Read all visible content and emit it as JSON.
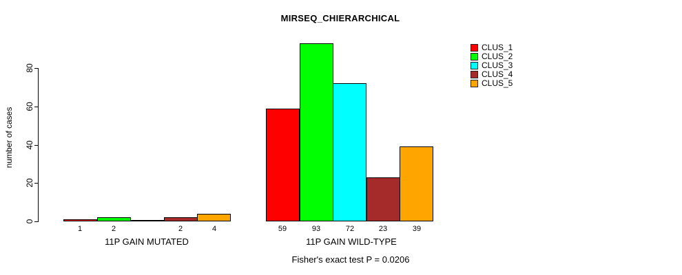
{
  "chart_data": {
    "type": "bar",
    "title": "MIRSEQ_CHIERARCHICAL",
    "ylabel": "number of cases",
    "xlabel": "",
    "groups": [
      "11P GAIN MUTATED",
      "11P GAIN WILD-TYPE"
    ],
    "series": [
      {
        "name": "CLUS_1",
        "color": "#ff0000",
        "values": [
          1,
          59
        ]
      },
      {
        "name": "CLUS_2",
        "color": "#00ff00",
        "values": [
          2,
          93
        ]
      },
      {
        "name": "CLUS_3",
        "color": "#00ffff",
        "values": [
          0,
          72
        ]
      },
      {
        "name": "CLUS_4",
        "color": "#a52a2a",
        "values": [
          2,
          23
        ]
      },
      {
        "name": "CLUS_5",
        "color": "#ffa500",
        "values": [
          4,
          39
        ]
      }
    ],
    "bar_labels": [
      [
        "1",
        "2",
        null,
        "2",
        "4"
      ],
      [
        "59",
        "93",
        "72",
        "23",
        "39"
      ]
    ],
    "yticks": [
      0,
      20,
      40,
      60,
      80
    ],
    "ylim": [
      0,
      93
    ],
    "grid": false,
    "legend_position": "top-right",
    "annotation": "Fisher's exact test P = 0.0206"
  }
}
